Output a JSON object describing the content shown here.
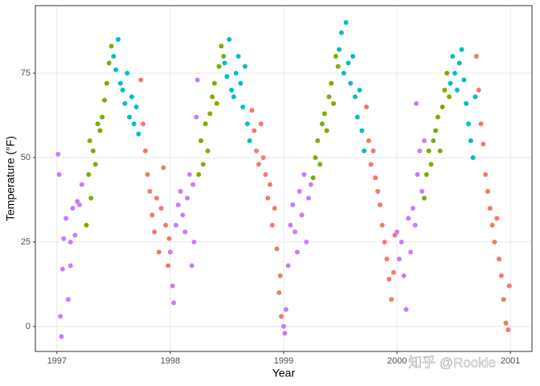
{
  "chart_data": {
    "type": "scatter",
    "xlabel": "Year",
    "ylabel": "Temperature (°F)",
    "watermark": "知乎 @Rookie",
    "xlim": [
      1996.81,
      2001.19
    ],
    "ylim": [
      -7.4,
      95
    ],
    "xticks": [
      1997,
      1998,
      1999,
      2000,
      2001
    ],
    "yticks": [
      0,
      25,
      50,
      75
    ],
    "grid": true,
    "series": [
      {
        "color": "#C77CFF",
        "x": [
          1997.01,
          1997.02,
          1997.03,
          1997.04,
          1997.05,
          1997.06,
          1997.08,
          1997.1,
          1997.12,
          1997.14,
          1997.16,
          1997.18,
          1997.2,
          1997.22,
          1997.12,
          1998.0,
          1998.02,
          1998.03,
          1998.05,
          1998.07,
          1998.09,
          1998.11,
          1998.13,
          1998.15,
          1998.17,
          1998.19,
          1998.21,
          1998.23,
          1998.24,
          1998.2,
          1999.0,
          1999.01,
          1999.02,
          1999.04,
          1999.06,
          1999.08,
          1999.1,
          1999.12,
          1999.14,
          1999.16,
          1999.18,
          1999.2,
          1999.22,
          1999.24,
          2000.0,
          2000.02,
          2000.04,
          2000.06,
          2000.08,
          2000.1,
          2000.12,
          2000.14,
          2000.16,
          2000.18,
          2000.2,
          2000.17,
          2000.22,
          2000.24
        ],
        "values": [
          51,
          45,
          3,
          -3,
          17,
          26,
          32,
          8,
          25,
          35,
          27,
          37,
          36,
          42,
          18,
          22,
          12,
          7,
          30,
          36,
          40,
          33,
          28,
          38,
          45,
          18,
          25,
          62,
          73,
          42,
          0,
          -2,
          5,
          18,
          30,
          36,
          28,
          22,
          40,
          33,
          45,
          25,
          38,
          42,
          28,
          20,
          25,
          15,
          5,
          32,
          22,
          35,
          30,
          45,
          52,
          66,
          40,
          55
        ]
      },
      {
        "color": "#7CAE00",
        "x": [
          1997.26,
          1997.28,
          1997.3,
          1997.32,
          1997.34,
          1997.36,
          1997.38,
          1997.4,
          1997.42,
          1997.44,
          1997.46,
          1997.48,
          1997.29,
          1998.25,
          1998.27,
          1998.29,
          1998.31,
          1998.33,
          1998.35,
          1998.37,
          1998.39,
          1998.41,
          1998.43,
          1998.45,
          1998.47,
          1999.26,
          1999.28,
          1999.3,
          1999.32,
          1999.34,
          1999.36,
          1999.38,
          1999.4,
          1999.42,
          1999.44,
          1999.46,
          1999.48,
          2000.24,
          2000.26,
          2000.28,
          2000.3,
          2000.32,
          2000.34,
          2000.36,
          2000.38,
          2000.4,
          2000.42,
          2000.44,
          2000.46
        ],
        "values": [
          30,
          45,
          38,
          52,
          48,
          60,
          58,
          62,
          67,
          72,
          78,
          83,
          55,
          45,
          55,
          48,
          60,
          52,
          63,
          68,
          72,
          66,
          77,
          83,
          80,
          44,
          50,
          55,
          48,
          60,
          63,
          58,
          68,
          72,
          66,
          80,
          77,
          38,
          45,
          52,
          48,
          55,
          58,
          62,
          52,
          65,
          70,
          75,
          68
        ]
      },
      {
        "color": "#00BFC4",
        "x": [
          1997.5,
          1997.52,
          1997.54,
          1997.56,
          1997.58,
          1997.6,
          1997.62,
          1997.64,
          1997.66,
          1997.68,
          1997.7,
          1997.72,
          1998.48,
          1998.5,
          1998.52,
          1998.54,
          1998.56,
          1998.58,
          1998.6,
          1998.62,
          1998.64,
          1998.66,
          1998.68,
          1998.7,
          1999.49,
          1999.51,
          1999.53,
          1999.55,
          1999.57,
          1999.59,
          1999.61,
          1999.63,
          1999.65,
          1999.67,
          1999.69,
          1999.71,
          2000.47,
          2000.49,
          2000.51,
          2000.53,
          2000.55,
          2000.57,
          2000.59,
          2000.61,
          2000.63,
          2000.65,
          2000.67,
          2000.69
        ],
        "values": [
          80,
          76,
          85,
          72,
          70,
          66,
          75,
          62,
          68,
          60,
          65,
          57,
          78,
          74,
          85,
          70,
          68,
          75,
          80,
          72,
          65,
          77,
          60,
          55,
          82,
          87,
          75,
          90,
          78,
          72,
          80,
          68,
          62,
          70,
          58,
          52,
          72,
          80,
          75,
          70,
          78,
          82,
          73,
          66,
          60,
          55,
          50,
          68
        ]
      },
      {
        "color": "#F8766D",
        "x": [
          1997.74,
          1997.76,
          1997.78,
          1997.8,
          1997.82,
          1997.84,
          1997.86,
          1997.88,
          1997.9,
          1997.92,
          1997.94,
          1997.96,
          1997.98,
          1997.99,
          1998.72,
          1998.74,
          1998.76,
          1998.78,
          1998.8,
          1998.82,
          1998.84,
          1998.86,
          1998.88,
          1998.9,
          1998.92,
          1998.94,
          1998.96,
          1998.98,
          1998.97,
          1999.73,
          1999.75,
          1999.77,
          1999.79,
          1999.81,
          1999.83,
          1999.85,
          1999.87,
          1999.89,
          1999.91,
          1999.93,
          1999.95,
          1999.97,
          1999.98,
          2000.7,
          2000.72,
          2000.74,
          2000.76,
          2000.78,
          2000.8,
          2000.82,
          2000.84,
          2000.86,
          2000.88,
          2000.9,
          2000.92,
          2000.94,
          2000.96,
          2000.98,
          2000.99
        ],
        "values": [
          73,
          60,
          52,
          45,
          40,
          33,
          28,
          38,
          22,
          35,
          47,
          30,
          18,
          26,
          64,
          58,
          52,
          48,
          60,
          50,
          45,
          38,
          42,
          30,
          35,
          23,
          10,
          3,
          15,
          65,
          55,
          48,
          52,
          44,
          40,
          36,
          30,
          25,
          20,
          14,
          8,
          16,
          27,
          80,
          70,
          60,
          54,
          45,
          40,
          35,
          30,
          25,
          32,
          20,
          15,
          8,
          1,
          -1,
          12
        ]
      }
    ]
  }
}
